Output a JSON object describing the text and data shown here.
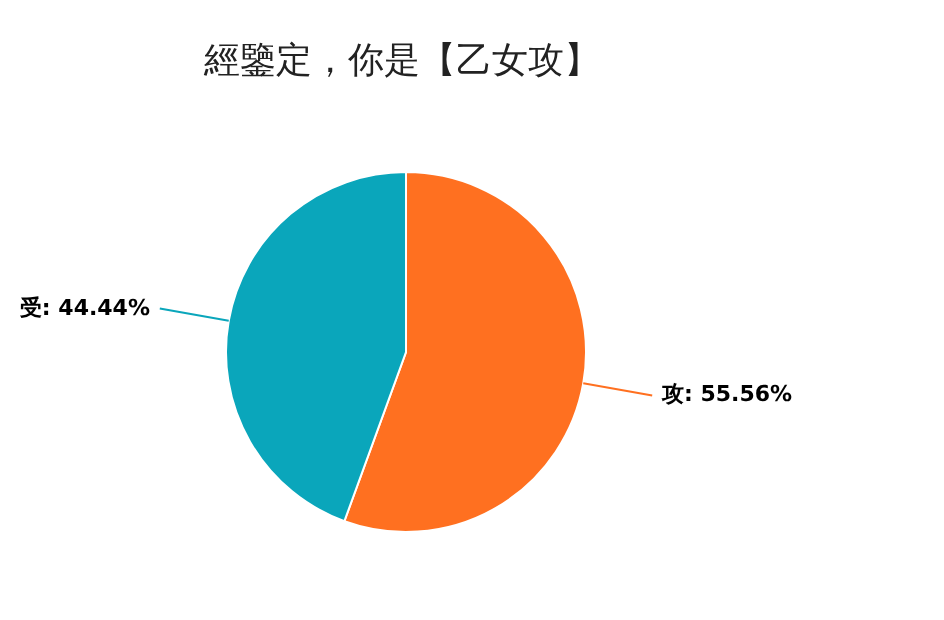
{
  "chart_data": {
    "type": "pie",
    "title": "經鑒定，你是【乙女攻】",
    "categories": [
      "攻",
      "受"
    ],
    "values": [
      55.56,
      44.44
    ],
    "colors": [
      "#ff7020",
      "#0aa6bb"
    ],
    "value_labels": [
      "55.56%",
      "44.44%"
    ]
  }
}
